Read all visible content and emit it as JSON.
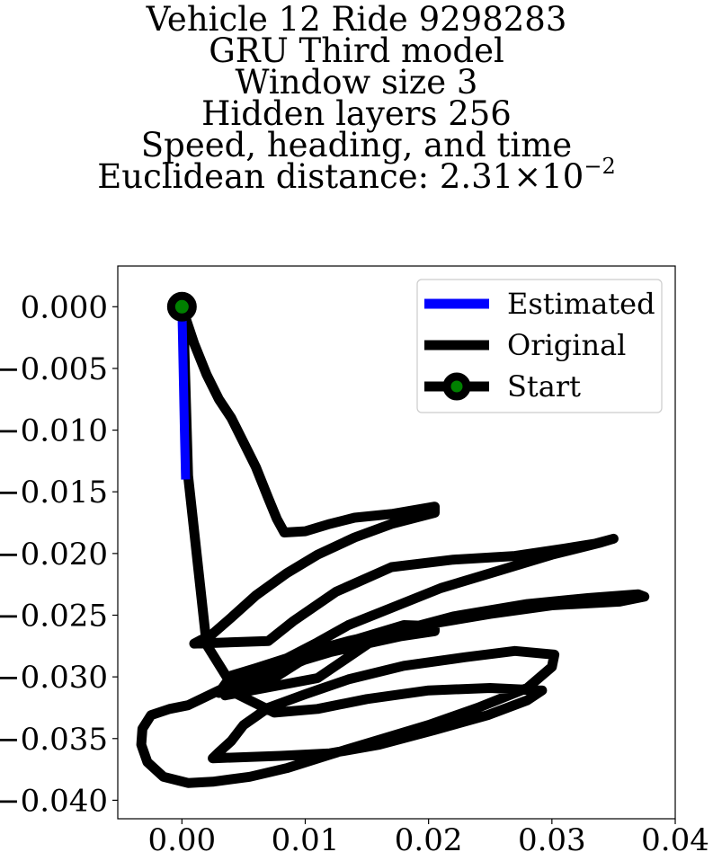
{
  "title_lines": [
    "Vehicle 12 Ride 9298283",
    "GRU Third model",
    "Window size 3",
    "Hidden layers 256",
    "Speed, heading, and time"
  ],
  "title_metric": {
    "label": "Euclidean distance: ",
    "mantissa": "2.31",
    "times": "×",
    "base": "10",
    "exponent": "−2"
  },
  "chart_data": {
    "type": "line",
    "title": "Vehicle 12 Ride 9298283 GRU Third model Window size 3 Hidden layers 256 Speed, heading, and time Euclidean distance: 2.31×10^-2",
    "xlabel": "",
    "ylabel": "",
    "xlim": [
      -0.0052,
      0.04
    ],
    "ylim": [
      -0.0415,
      0.0033
    ],
    "xticks": [
      0.0,
      0.01,
      0.02,
      0.03,
      0.04
    ],
    "xtick_labels": [
      "0.00",
      "0.01",
      "0.02",
      "0.03",
      "0.04"
    ],
    "yticks": [
      0.0,
      -0.005,
      -0.01,
      -0.015,
      -0.02,
      -0.025,
      -0.03,
      -0.035,
      -0.04
    ],
    "ytick_labels": [
      "0.000",
      "−0.005",
      "−0.010",
      "−0.015",
      "−0.020",
      "−0.025",
      "−0.030",
      "−0.035",
      "−0.040"
    ],
    "grid": false,
    "legend_position": "top-right",
    "legend": [
      "Estimated",
      "Original",
      "Start"
    ],
    "series": [
      {
        "name": "Estimated",
        "color": "#0000ff",
        "x": [
          0.0,
          0.0001,
          0.0002,
          0.0003
        ],
        "y": [
          0.0,
          -0.005,
          -0.01,
          -0.014
        ]
      },
      {
        "name": "Original",
        "color": "#000000",
        "x": [
          0.0,
          0.001,
          0.002,
          0.003,
          0.004,
          0.005,
          0.006,
          0.007,
          0.0077,
          0.0083,
          0.01,
          0.012,
          0.014,
          0.017,
          0.0205,
          0.0205,
          0.017,
          0.014,
          0.011,
          0.0085,
          0.006,
          0.004,
          0.0025,
          0.001,
          0.007,
          0.009,
          0.0125,
          0.017,
          0.022,
          0.027,
          0.031,
          0.0335,
          0.035,
          0.034,
          0.03,
          0.026,
          0.021,
          0.017,
          0.0135,
          0.011,
          0.0085,
          0.006,
          0.004,
          0.003,
          0.007,
          0.0095,
          0.013,
          0.018,
          0.0205,
          0.0205,
          0.0178,
          0.015,
          0.012,
          0.009,
          0.006,
          0.0035,
          0.011,
          0.016,
          0.022,
          0.028,
          0.033,
          0.037,
          0.0375,
          0.0355,
          0.03,
          0.025,
          0.019,
          0.0135,
          0.009,
          0.006,
          0.003,
          0.0005,
          -0.001,
          -0.0025,
          -0.0032,
          -0.0033,
          -0.0028,
          -0.0015,
          0.0005,
          0.0025,
          0.0055,
          0.0085,
          0.012,
          0.016,
          0.02,
          0.024,
          0.028,
          0.03,
          0.0302,
          0.027,
          0.023,
          0.018,
          0.0135,
          0.01,
          0.007,
          0.005,
          0.004,
          0.003,
          0.0025,
          0.008,
          0.012,
          0.016,
          0.0205,
          0.0248,
          0.028,
          0.0292,
          0.025,
          0.02,
          0.015,
          0.011,
          0.0075,
          0.0045,
          0.002,
          0.0005,
          0.0001
        ],
        "y": [
          0.0,
          -0.003,
          -0.0055,
          -0.0075,
          -0.009,
          -0.011,
          -0.013,
          -0.0155,
          -0.0172,
          -0.0183,
          -0.0182,
          -0.0176,
          -0.0171,
          -0.0168,
          -0.0162,
          -0.0167,
          -0.0176,
          -0.0187,
          -0.0201,
          -0.0216,
          -0.0234,
          -0.0252,
          -0.0265,
          -0.0273,
          -0.0271,
          -0.0255,
          -0.0231,
          -0.0211,
          -0.0205,
          -0.0202,
          -0.0196,
          -0.0192,
          -0.0188,
          -0.0191,
          -0.0201,
          -0.0213,
          -0.0228,
          -0.0244,
          -0.0258,
          -0.0272,
          -0.0285,
          -0.0293,
          -0.0299,
          -0.0313,
          -0.0304,
          -0.0288,
          -0.0273,
          -0.0258,
          -0.0259,
          -0.0263,
          -0.0267,
          -0.0273,
          -0.028,
          -0.0289,
          -0.0301,
          -0.0315,
          -0.0301,
          -0.0267,
          -0.0251,
          -0.0241,
          -0.0236,
          -0.0233,
          -0.0235,
          -0.0239,
          -0.0242,
          -0.0249,
          -0.0259,
          -0.0271,
          -0.0283,
          -0.0296,
          -0.0311,
          -0.0323,
          -0.0326,
          -0.0331,
          -0.0342,
          -0.0355,
          -0.0369,
          -0.0381,
          -0.0386,
          -0.0385,
          -0.0381,
          -0.0374,
          -0.0363,
          -0.0351,
          -0.0339,
          -0.0325,
          -0.0309,
          -0.0292,
          -0.0282,
          -0.0279,
          -0.0284,
          -0.0291,
          -0.0302,
          -0.0314,
          -0.0325,
          -0.0339,
          -0.0352,
          -0.0361,
          -0.0366,
          -0.0364,
          -0.0362,
          -0.0355,
          -0.0343,
          -0.0331,
          -0.0319,
          -0.0311,
          -0.0309,
          -0.0311,
          -0.0318,
          -0.0326,
          -0.0329,
          -0.0314,
          -0.0274,
          -0.0137,
          0.0
        ]
      }
    ],
    "start_point": {
      "name": "Start",
      "x": 0.0,
      "y": 0.0,
      "color": "#008000"
    }
  }
}
